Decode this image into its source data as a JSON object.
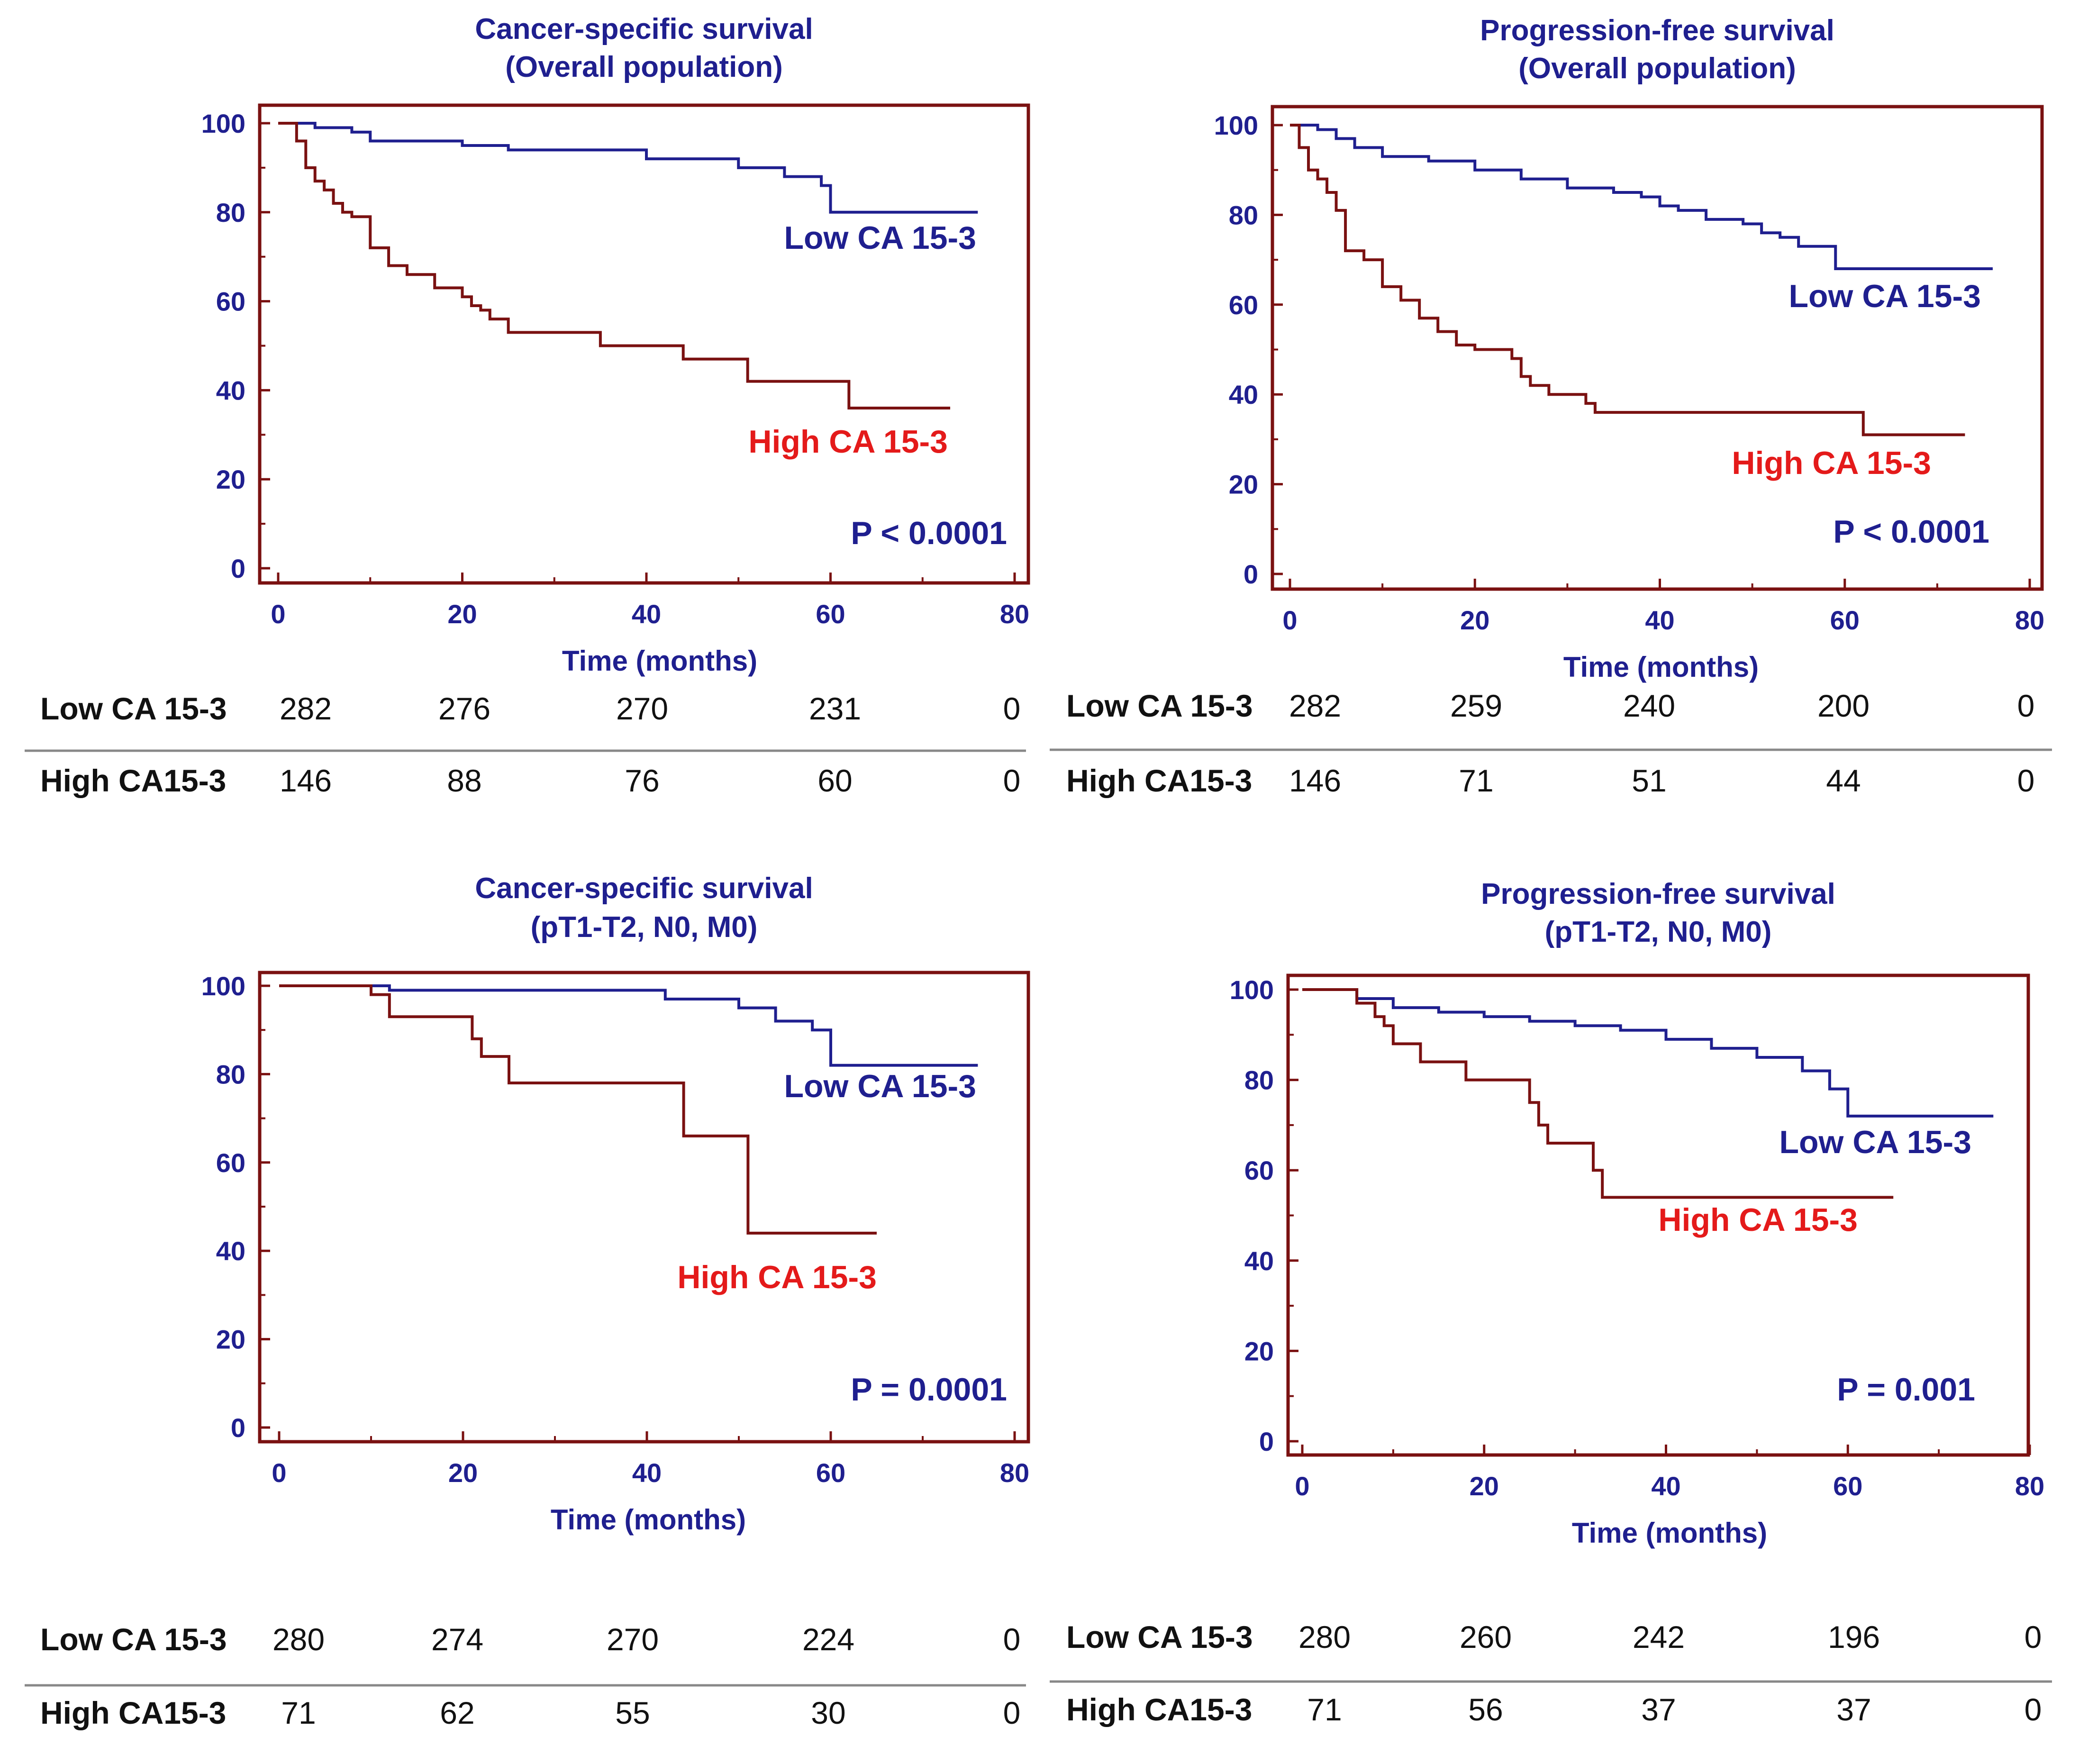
{
  "colors": {
    "low": "#1f1f8f",
    "high": "#7a1111",
    "frame": "#7a1111",
    "axis": "#1f1f8f",
    "high_label": "#e41a1a",
    "table_text": "#111111",
    "table_rule": "#888888"
  },
  "chart_data": [
    {
      "type": "line",
      "title": "Cancer-specific survival",
      "subtitle": "(Overall population)",
      "xlabel": "Time (months)",
      "ylabel": "",
      "xlim": [
        0,
        80
      ],
      "ylim": [
        0,
        100
      ],
      "xticks": [
        "0",
        "20",
        "40",
        "60",
        "80"
      ],
      "yticks": [
        "0",
        "20",
        "40",
        "60",
        "80",
        "100"
      ],
      "pvalue": "P < 0.0001",
      "series": [
        {
          "name": "Low CA 15-3",
          "key": "low",
          "steps": [
            [
              0,
              100
            ],
            [
              4,
              99
            ],
            [
              8,
              98
            ],
            [
              10,
              96
            ],
            [
              20,
              95
            ],
            [
              25,
              94
            ],
            [
              40,
              92
            ],
            [
              45,
              92
            ],
            [
              50,
              90
            ],
            [
              55,
              88
            ],
            [
              59,
              86
            ],
            [
              60,
              80
            ],
            [
              76,
              80
            ]
          ]
        },
        {
          "name": "High CA 15-3",
          "key": "high",
          "steps": [
            [
              0,
              100
            ],
            [
              2,
              96
            ],
            [
              3,
              90
            ],
            [
              4,
              87
            ],
            [
              5,
              85
            ],
            [
              6,
              82
            ],
            [
              7,
              80
            ],
            [
              8,
              79
            ],
            [
              10,
              72
            ],
            [
              12,
              68
            ],
            [
              14,
              66
            ],
            [
              17,
              63
            ],
            [
              20,
              61
            ],
            [
              21,
              59
            ],
            [
              22,
              58
            ],
            [
              23,
              56
            ],
            [
              25,
              53
            ],
            [
              35,
              50
            ],
            [
              40,
              50
            ],
            [
              44,
              47
            ],
            [
              51,
              42
            ],
            [
              62,
              36
            ],
            [
              73,
              36
            ]
          ]
        }
      ],
      "risk_table": {
        "rows": [
          {
            "label": "Low CA 15-3",
            "values": [
              "282",
              "276",
              "270",
              "231",
              "0"
            ]
          },
          {
            "label": "High CA15-3",
            "values": [
              "146",
              "88",
              "76",
              "60",
              "0"
            ]
          }
        ]
      }
    },
    {
      "type": "line",
      "title": "Progression-free survival",
      "subtitle": "(Overall population)",
      "xlabel": "Time (months)",
      "ylabel": "",
      "xlim": [
        0,
        80
      ],
      "ylim": [
        0,
        100
      ],
      "xticks": [
        "0",
        "20",
        "40",
        "60",
        "80"
      ],
      "yticks": [
        "0",
        "20",
        "40",
        "60",
        "80",
        "100"
      ],
      "pvalue": "P < 0.0001",
      "series": [
        {
          "name": "Low CA 15-3",
          "key": "low",
          "steps": [
            [
              0,
              100
            ],
            [
              3,
              99
            ],
            [
              5,
              97
            ],
            [
              7,
              95
            ],
            [
              10,
              93
            ],
            [
              15,
              92
            ],
            [
              20,
              90
            ],
            [
              25,
              88
            ],
            [
              30,
              86
            ],
            [
              35,
              85
            ],
            [
              38,
              84
            ],
            [
              40,
              82
            ],
            [
              42,
              81
            ],
            [
              45,
              79
            ],
            [
              49,
              78
            ],
            [
              51,
              76
            ],
            [
              53,
              75
            ],
            [
              55,
              73
            ],
            [
              59,
              68
            ],
            [
              76,
              68
            ]
          ]
        },
        {
          "name": "High CA 15-3",
          "key": "high",
          "steps": [
            [
              0,
              100
            ],
            [
              1,
              95
            ],
            [
              2,
              90
            ],
            [
              3,
              88
            ],
            [
              4,
              85
            ],
            [
              5,
              81
            ],
            [
              6,
              72
            ],
            [
              8,
              70
            ],
            [
              10,
              64
            ],
            [
              12,
              61
            ],
            [
              14,
              57
            ],
            [
              16,
              54
            ],
            [
              18,
              51
            ],
            [
              20,
              50
            ],
            [
              24,
              48
            ],
            [
              25,
              44
            ],
            [
              26,
              42
            ],
            [
              28,
              40
            ],
            [
              32,
              38
            ],
            [
              33,
              36
            ],
            [
              40,
              36
            ],
            [
              62,
              31
            ],
            [
              73,
              31
            ]
          ]
        }
      ],
      "risk_table": {
        "rows": [
          {
            "label": "Low CA 15-3",
            "values": [
              "282",
              "259",
              "240",
              "200",
              "0"
            ]
          },
          {
            "label": "High CA15-3",
            "values": [
              "146",
              "71",
              "51",
              "44",
              "0"
            ]
          }
        ]
      }
    },
    {
      "type": "line",
      "title": "Cancer-specific survival",
      "subtitle": "(pT1-T2, N0, M0)",
      "xlabel": "Time (months)",
      "ylabel": "",
      "xlim": [
        0,
        80
      ],
      "ylim": [
        0,
        100
      ],
      "xticks": [
        "0",
        "20",
        "40",
        "60",
        "80"
      ],
      "yticks": [
        "0",
        "20",
        "40",
        "60",
        "80",
        "100"
      ],
      "pvalue": "P = 0.0001",
      "series": [
        {
          "name": "Low CA 15-3",
          "key": "low",
          "steps": [
            [
              0,
              100
            ],
            [
              12,
              99
            ],
            [
              30,
              99
            ],
            [
              42,
              97
            ],
            [
              50,
              95
            ],
            [
              54,
              92
            ],
            [
              58,
              90
            ],
            [
              60,
              82
            ],
            [
              76,
              82
            ]
          ]
        },
        {
          "name": "High CA 15-3",
          "key": "high",
          "steps": [
            [
              0,
              100
            ],
            [
              10,
              98
            ],
            [
              12,
              93
            ],
            [
              21,
              88
            ],
            [
              22,
              84
            ],
            [
              25,
              78
            ],
            [
              44,
              78
            ],
            [
              44,
              66
            ],
            [
              51,
              44
            ],
            [
              65,
              44
            ]
          ]
        }
      ],
      "risk_table": {
        "rows": [
          {
            "label": "Low CA 15-3",
            "values": [
              "280",
              "274",
              "270",
              "224",
              "0"
            ]
          },
          {
            "label": "High CA15-3",
            "values": [
              "71",
              "62",
              "55",
              "30",
              "0"
            ]
          }
        ]
      }
    },
    {
      "type": "line",
      "title": "Progression-free survival",
      "subtitle": "(pT1-T2, N0, M0)",
      "xlabel": "Time (months)",
      "ylabel": "",
      "xlim": [
        0,
        80
      ],
      "ylim": [
        0,
        100
      ],
      "xticks": [
        "0",
        "20",
        "40",
        "60",
        "80"
      ],
      "yticks": [
        "0",
        "20",
        "40",
        "60",
        "80",
        "100"
      ],
      "pvalue": "P = 0.001",
      "series": [
        {
          "name": "Low CA 15-3",
          "key": "low",
          "steps": [
            [
              0,
              100
            ],
            [
              6,
              98
            ],
            [
              10,
              96
            ],
            [
              15,
              95
            ],
            [
              20,
              94
            ],
            [
              25,
              93
            ],
            [
              30,
              92
            ],
            [
              35,
              91
            ],
            [
              40,
              89
            ],
            [
              45,
              87
            ],
            [
              50,
              85
            ],
            [
              55,
              82
            ],
            [
              58,
              78
            ],
            [
              60,
              72
            ],
            [
              76,
              72
            ]
          ]
        },
        {
          "name": "High CA 15-3",
          "key": "high",
          "steps": [
            [
              0,
              100
            ],
            [
              6,
              97
            ],
            [
              8,
              94
            ],
            [
              9,
              92
            ],
            [
              10,
              88
            ],
            [
              13,
              84
            ],
            [
              18,
              80
            ],
            [
              25,
              75
            ],
            [
              26,
              70
            ],
            [
              27,
              66
            ],
            [
              32,
              60
            ],
            [
              33,
              54
            ],
            [
              65,
              54
            ]
          ]
        }
      ],
      "risk_table": {
        "rows": [
          {
            "label": "Low CA 15-3",
            "values": [
              "280",
              "260",
              "242",
              "196",
              "0"
            ]
          },
          {
            "label": "High CA15-3",
            "values": [
              "71",
              "56",
              "37",
              "37",
              "0"
            ]
          }
        ]
      }
    }
  ]
}
